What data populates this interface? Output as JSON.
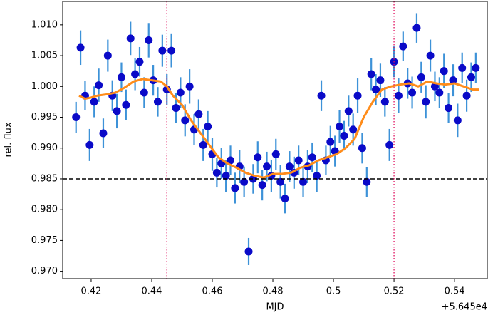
{
  "chart_data": {
    "type": "scatter",
    "xlabel": "MJD",
    "ylabel": "rel. flux",
    "x_offset_label": "+5.645e4",
    "x": [
      0.415,
      0.4165,
      0.418,
      0.4195,
      0.421,
      0.4225,
      0.424,
      0.4255,
      0.427,
      0.4285,
      0.43,
      0.4315,
      0.433,
      0.4345,
      0.436,
      0.4375,
      0.439,
      0.4405,
      0.442,
      0.4435,
      0.445,
      0.4465,
      0.448,
      0.4495,
      0.451,
      0.4525,
      0.454,
      0.4555,
      0.457,
      0.4585,
      0.46,
      0.4615,
      0.463,
      0.4645,
      0.466,
      0.4675,
      0.469,
      0.4705,
      0.472,
      0.4735,
      0.475,
      0.4765,
      0.478,
      0.4795,
      0.481,
      0.4825,
      0.484,
      0.4855,
      0.487,
      0.4885,
      0.49,
      0.4915,
      0.493,
      0.4945,
      0.496,
      0.4975,
      0.499,
      0.5005,
      0.502,
      0.5035,
      0.505,
      0.5065,
      0.508,
      0.5095,
      0.511,
      0.5125,
      0.514,
      0.5155,
      0.517,
      0.5185,
      0.52,
      0.5215,
      0.523,
      0.5245,
      0.526,
      0.5275,
      0.529,
      0.5305,
      0.532,
      0.5335,
      0.535,
      0.5365,
      0.538,
      0.5395,
      0.541,
      0.5425,
      0.544,
      0.5455,
      0.547
    ],
    "values": [
      0.995,
      1.0063,
      0.9985,
      0.9905,
      0.9975,
      1.0002,
      0.9924,
      1.005,
      0.9985,
      0.996,
      1.0015,
      0.997,
      1.0078,
      1.002,
      1.004,
      0.999,
      1.0075,
      1.001,
      0.9975,
      1.0058,
      0.9995,
      1.0058,
      0.9965,
      0.999,
      0.9945,
      1.0,
      0.993,
      0.9955,
      0.9905,
      0.9935,
      0.989,
      0.986,
      0.9875,
      0.9855,
      0.988,
      0.9835,
      0.987,
      0.9845,
      0.9732,
      0.985,
      0.9885,
      0.984,
      0.987,
      0.9855,
      0.989,
      0.9845,
      0.9818,
      0.987,
      0.986,
      0.988,
      0.9845,
      0.987,
      0.9885,
      0.9855,
      0.9985,
      0.988,
      0.991,
      0.9895,
      0.9935,
      0.992,
      0.996,
      0.993,
      0.9985,
      0.99,
      0.9845,
      1.002,
      0.9995,
      1.001,
      0.9975,
      0.9905,
      1.004,
      0.9985,
      1.0065,
      1.0005,
      0.999,
      1.0095,
      1.0015,
      0.9975,
      1.005,
      1.0,
      0.999,
      1.0025,
      0.9965,
      1.001,
      0.9945,
      1.003,
      0.9985,
      1.0015,
      1.003
    ],
    "errors": [
      0.0025,
      0.0028,
      0.0024,
      0.0026,
      0.0025,
      0.0027,
      0.0024,
      0.0026,
      0.0025,
      0.0028,
      0.0024,
      0.0025,
      0.0027,
      0.0026,
      0.0024,
      0.0025,
      0.0028,
      0.0025,
      0.0024,
      0.0026,
      0.0025,
      0.0027,
      0.0024,
      0.0025,
      0.0026,
      0.0028,
      0.0025,
      0.0024,
      0.0026,
      0.0025,
      0.0027,
      0.0024,
      0.0025,
      0.0026,
      0.0024,
      0.0025,
      0.0027,
      0.0025,
      0.0022,
      0.0024,
      0.0026,
      0.0025,
      0.0024,
      0.0026,
      0.0025,
      0.0027,
      0.0024,
      0.0025,
      0.0026,
      0.0024,
      0.0025,
      0.0027,
      0.0024,
      0.0026,
      0.0025,
      0.0024,
      0.0026,
      0.0025,
      0.0027,
      0.0024,
      0.0025,
      0.0026,
      0.0028,
      0.0025,
      0.0024,
      0.0026,
      0.0025,
      0.0027,
      0.0024,
      0.0026,
      0.0025,
      0.0028,
      0.0024,
      0.0025,
      0.0026,
      0.0024,
      0.0025,
      0.0027,
      0.0026,
      0.0024,
      0.0025,
      0.0028,
      0.0024,
      0.0026,
      0.0027,
      0.0025,
      0.0026,
      0.0024,
      0.0025
    ],
    "color": "#0a0ac8",
    "ecolor": "#3d92d8",
    "model": {
      "color": "#ff8c1a",
      "x": [
        0.416,
        0.418,
        0.42,
        0.422,
        0.425,
        0.428,
        0.431,
        0.434,
        0.437,
        0.44,
        0.443,
        0.445,
        0.447,
        0.45,
        0.453,
        0.456,
        0.459,
        0.462,
        0.465,
        0.468,
        0.471,
        0.474,
        0.477,
        0.48,
        0.483,
        0.486,
        0.489,
        0.492,
        0.495,
        0.498,
        0.501,
        0.504,
        0.507,
        0.51,
        0.513,
        0.516,
        0.519,
        0.522,
        0.525,
        0.528,
        0.531,
        0.534,
        0.537,
        0.54,
        0.543,
        0.546,
        0.548
      ],
      "values": [
        0.9985,
        0.998,
        0.9982,
        0.9985,
        0.9987,
        0.999,
        0.9998,
        1.0008,
        1.0012,
        1.001,
        1.0008,
        1.0,
        0.9985,
        0.997,
        0.9945,
        0.9925,
        0.9905,
        0.9885,
        0.9875,
        0.9868,
        0.986,
        0.9855,
        0.9852,
        0.9858,
        0.9858,
        0.986,
        0.9868,
        0.9872,
        0.988,
        0.9885,
        0.989,
        0.99,
        0.9915,
        0.995,
        0.9975,
        0.9995,
        1.0,
        1.0003,
        1.0005,
        1.0,
        1.0008,
        1.0005,
        1.0003,
        1.0005,
        1.0,
        0.9995,
        0.9995
      ]
    },
    "hline": {
      "value": 0.985,
      "color": "#000000"
    },
    "vlines": {
      "values": [
        0.445,
        0.52
      ],
      "color": "#e0115f"
    },
    "xlim": [
      0.4106,
      0.5508
    ],
    "ylim": [
      0.9688,
      1.0138
    ],
    "xticks": [
      0.42,
      0.44,
      0.46,
      0.48,
      0.5,
      0.52,
      0.54
    ],
    "yticks": [
      {
        "value": 0.97,
        "label": "0.970"
      },
      0.975,
      {
        "value": 0.98,
        "label": "0.980"
      },
      0.985,
      {
        "value": 0.99,
        "label": "0.990"
      },
      0.995,
      {
        "value": 1.0,
        "label": "1.000"
      },
      1.005,
      {
        "value": 1.01,
        "label": "1.010"
      }
    ]
  }
}
